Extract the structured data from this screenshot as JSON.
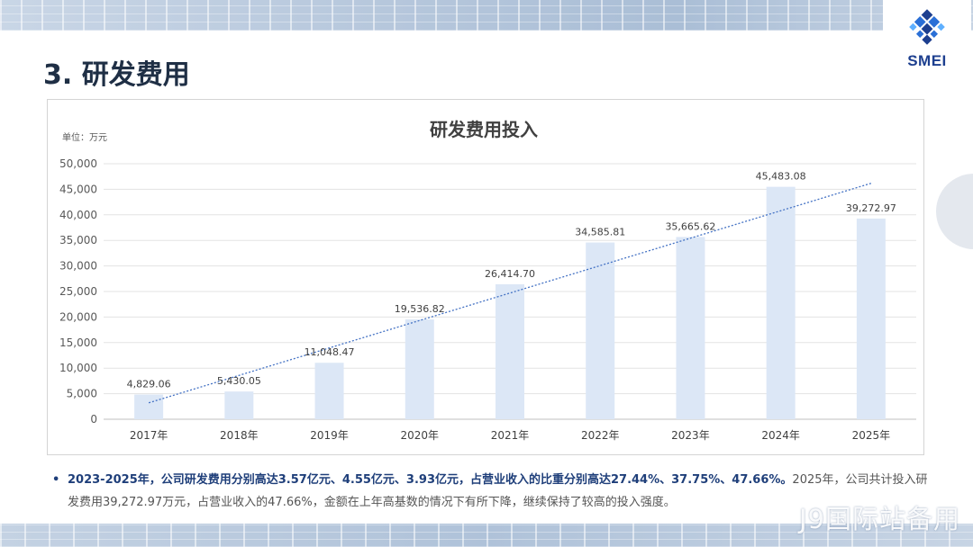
{
  "page": {
    "title": "3. 研发费用",
    "logo_text": "SMEI",
    "watermark": "J9国际站备用"
  },
  "colors": {
    "bar": "#dce7f6",
    "trendline": "#4472c4",
    "title_text": "#1f2f45",
    "accent": "#1f3f7a"
  },
  "chart_data": {
    "type": "bar",
    "title": "研发费用投入",
    "unit_label": "单位：万元",
    "categories": [
      "2017年",
      "2018年",
      "2019年",
      "2020年",
      "2021年",
      "2022年",
      "2023年",
      "2024年",
      "2025年"
    ],
    "values": [
      4829.06,
      5430.05,
      11048.47,
      19536.82,
      26414.7,
      34585.81,
      35665.62,
      45483.08,
      39272.97
    ],
    "data_labels": [
      "4,829.06",
      "5,430.05",
      "11,048.47",
      "19,536.82",
      "26,414.70",
      "34,585.81",
      "35,665.62",
      "45,483.08",
      "39,272.97"
    ],
    "ylim": [
      0,
      50000
    ],
    "yticks": [
      0,
      5000,
      10000,
      15000,
      20000,
      25000,
      30000,
      35000,
      40000,
      45000,
      50000
    ],
    "ytick_labels": [
      "0",
      "5,000",
      "10,000",
      "15,000",
      "20,000",
      "25,000",
      "30,000",
      "35,000",
      "40,000",
      "45,000",
      "50,000"
    ],
    "trendline": "linear",
    "grid": true,
    "legend": "none"
  },
  "summary": {
    "bold_text": "2023-2025年，公司研发费用分别高达3.57亿元、4.55亿元、3.93亿元，占营业收入的比重分别高达27.44%、37.75%、47.66%。",
    "normal_text": "2025年，公司共计投入研发费用39,272.97万元，占营业收入的47.66%，金额在上年高基数的情况下有所下降，继续保持了较高的投入强度。"
  }
}
